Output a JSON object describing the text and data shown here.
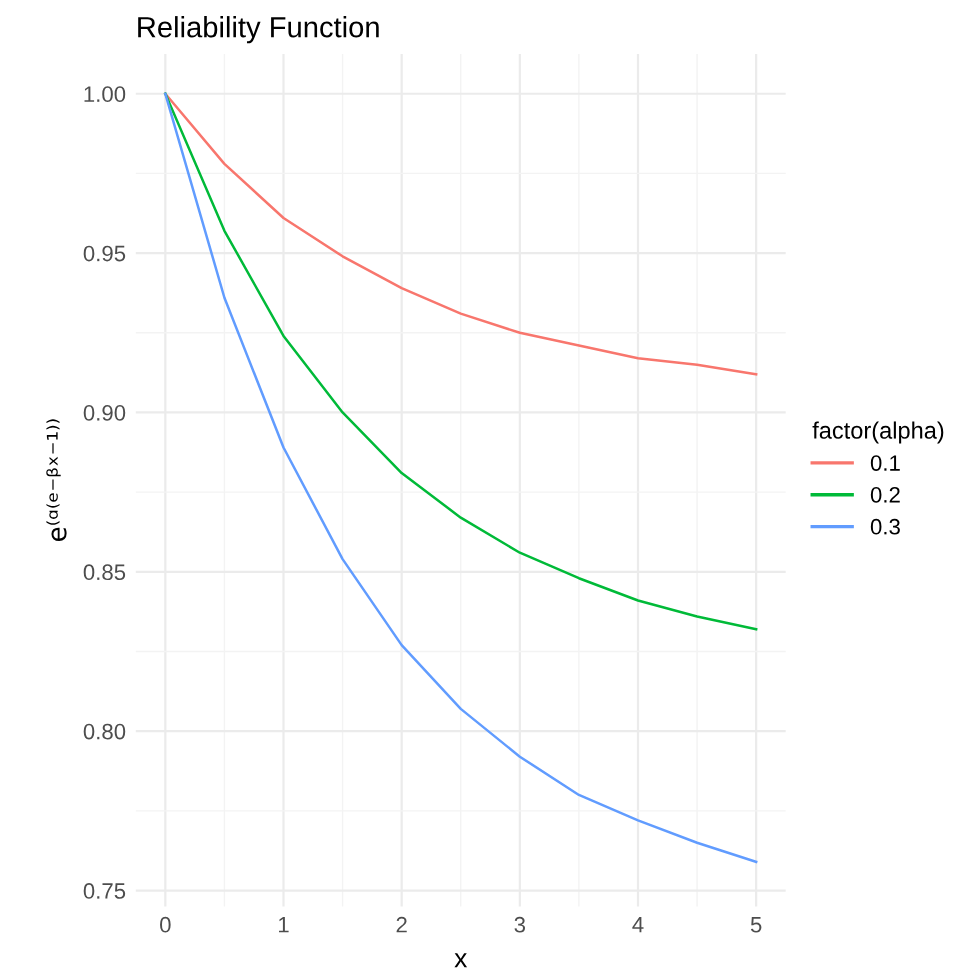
{
  "chart_data": {
    "type": "line",
    "title": "Reliability Function",
    "xlabel": "x",
    "ylabel": "e⁽ᵅ⁽ᵉ⁻ᵝˣ⁻¹⁾⁾",
    "legend_title": "factor(alpha)",
    "x": [
      0,
      0.5,
      1,
      1.5,
      2,
      2.5,
      3,
      3.5,
      4,
      4.5,
      5
    ],
    "series": [
      {
        "name": "0.1",
        "color": "#f8766d",
        "values": [
          1,
          0.978,
          0.961,
          0.949,
          0.939,
          0.931,
          0.925,
          0.921,
          0.917,
          0.915,
          0.912
        ]
      },
      {
        "name": "0.2",
        "color": "#00ba38",
        "values": [
          1,
          0.957,
          0.924,
          0.9,
          0.881,
          0.867,
          0.856,
          0.848,
          0.841,
          0.836,
          0.832
        ]
      },
      {
        "name": "0.3",
        "color": "#619cff",
        "values": [
          1,
          0.936,
          0.889,
          0.854,
          0.827,
          0.807,
          0.792,
          0.78,
          0.772,
          0.765,
          0.759
        ]
      }
    ],
    "xlim": [
      -0.25,
      5.25
    ],
    "ylim": [
      0.745,
      1.0125
    ],
    "xticks": [
      0,
      1,
      2,
      3,
      4,
      5
    ],
    "yticks": [
      {
        "value": 0.75,
        "label": "0.75"
      },
      {
        "value": 0.8,
        "label": "0.80"
      },
      {
        "value": 0.85,
        "label": "0.85"
      },
      {
        "value": 0.9,
        "label": "0.90"
      },
      {
        "value": 0.95,
        "label": "0.95"
      },
      {
        "value": 1.0,
        "label": "1.00"
      }
    ],
    "grid": true,
    "legend": "right",
    "line_style": "solid",
    "marker": "none"
  }
}
